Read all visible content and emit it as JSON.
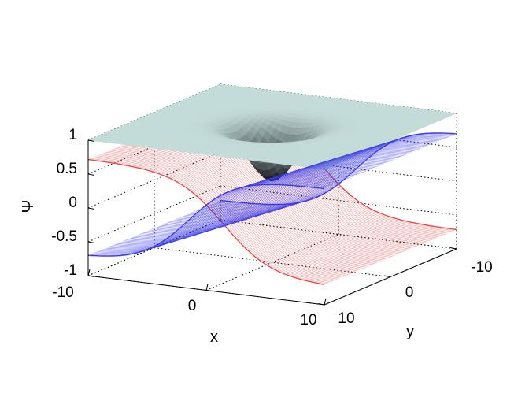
{
  "chart_data": {
    "type": "surface",
    "title": "",
    "xlabel": "x",
    "ylabel": "y",
    "zlabel": "Ψ",
    "xlim": [
      -10,
      10
    ],
    "ylim": [
      -10,
      10
    ],
    "zlim": [
      -1,
      1
    ],
    "x_ticks": [
      "-10",
      "0",
      "10"
    ],
    "y_ticks": [
      "-10",
      "0",
      "10"
    ],
    "z_ticks": [
      "1",
      "0.5",
      "0",
      "-0.5",
      "-1"
    ],
    "grid": true,
    "surfaces": [
      {
        "color": "#b8d6d2",
        "description_values": {
          "far_level": 1.0,
          "dip_minimum": 0.2,
          "dip_center": [
            0,
            0
          ]
        }
      },
      {
        "color": "#e04040",
        "description_values": {
          "level_at_x_-10": 0.72,
          "level_at_x_10": -0.72
        }
      },
      {
        "color": "#3030e0",
        "description_values": {
          "level_at_x_-10": -0.72,
          "level_at_x_10": 0.72
        }
      }
    ],
    "colors": {
      "red_surface": "#e84848",
      "blue_surface": "#3a3ae8",
      "grey_top": "#c4dcd8",
      "grey_dark": "#101018"
    }
  }
}
